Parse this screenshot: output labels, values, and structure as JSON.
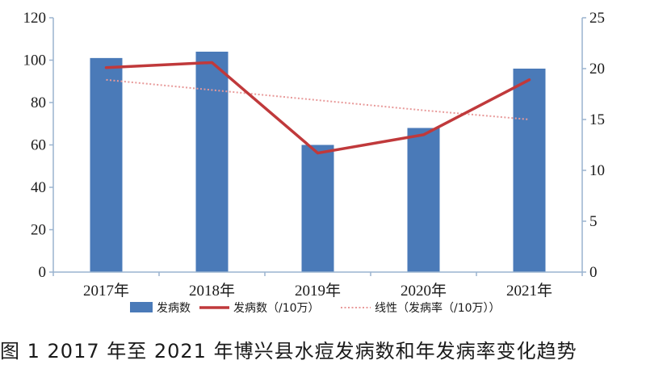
{
  "caption": "图 1 2017 年至 2021 年博兴县水痘发病数和年发病率变化趋势",
  "chart_data": {
    "type": "bar",
    "categories": [
      "2017年",
      "2018年",
      "2019年",
      "2020年",
      "2021年"
    ],
    "ylim": [
      0,
      120
    ],
    "y_ticks": [
      0,
      20,
      40,
      60,
      80,
      100,
      120
    ],
    "y2lim": [
      0,
      25
    ],
    "y2_ticks": [
      0,
      5,
      10,
      15,
      20,
      25
    ],
    "grid": false,
    "legend_position": "bottom",
    "series": [
      {
        "name": "发病数",
        "type": "bar",
        "axis": "left",
        "color": "#4a7ab8",
        "values": [
          101,
          104,
          60,
          68,
          96
        ]
      },
      {
        "name": "发病数（/10万）",
        "type": "line",
        "axis": "right",
        "color": "#c0393b",
        "values": [
          20.1,
          20.6,
          11.7,
          13.5,
          18.9
        ]
      },
      {
        "name": "线性（发病率（/10万））",
        "type": "trend",
        "axis": "right",
        "color": "#e89a9a",
        "values": [
          18.9,
          17.9,
          16.9,
          15.9,
          15.0
        ]
      }
    ]
  }
}
